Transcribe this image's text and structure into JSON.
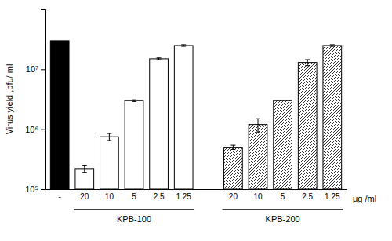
{
  "chart_data": {
    "type": "bar",
    "categories": [
      "-",
      "20",
      "10",
      "5",
      "2.5",
      "1.25",
      "20",
      "10",
      "5",
      "2.5",
      "1.25"
    ],
    "values": [
      30000000,
      220000,
      750000,
      3000000,
      15000000,
      25000000,
      500000,
      1200000,
      3000000,
      13000000,
      25000000
    ],
    "errors": [
      0,
      30000,
      100000,
      100000,
      500000,
      800000,
      40000,
      300000,
      0,
      1500000,
      800000
    ],
    "colors": [
      "black",
      "white",
      "white",
      "white",
      "white",
      "white",
      "white",
      "white",
      "white",
      "white",
      "white"
    ],
    "groups": [
      null,
      "KPB-100",
      "KPB-100",
      "KPB-100",
      "KPB-100",
      "KPB-100",
      "KPB-200",
      "KPB-200",
      "KPB-200",
      "KPB-200",
      "KPB-200"
    ],
    "ylabel": "Virus yield ,pfu/ ml",
    "xlabel": "μg /ml",
    "log": "y",
    "ylim": [
      100000,
      100000000
    ],
    "yticks": [
      {
        "value": 100000,
        "label": "10⁵"
      },
      {
        "value": 1000000,
        "label": "10⁶"
      },
      {
        "value": 10000000,
        "label": "10⁷"
      }
    ],
    "grid": false
  }
}
